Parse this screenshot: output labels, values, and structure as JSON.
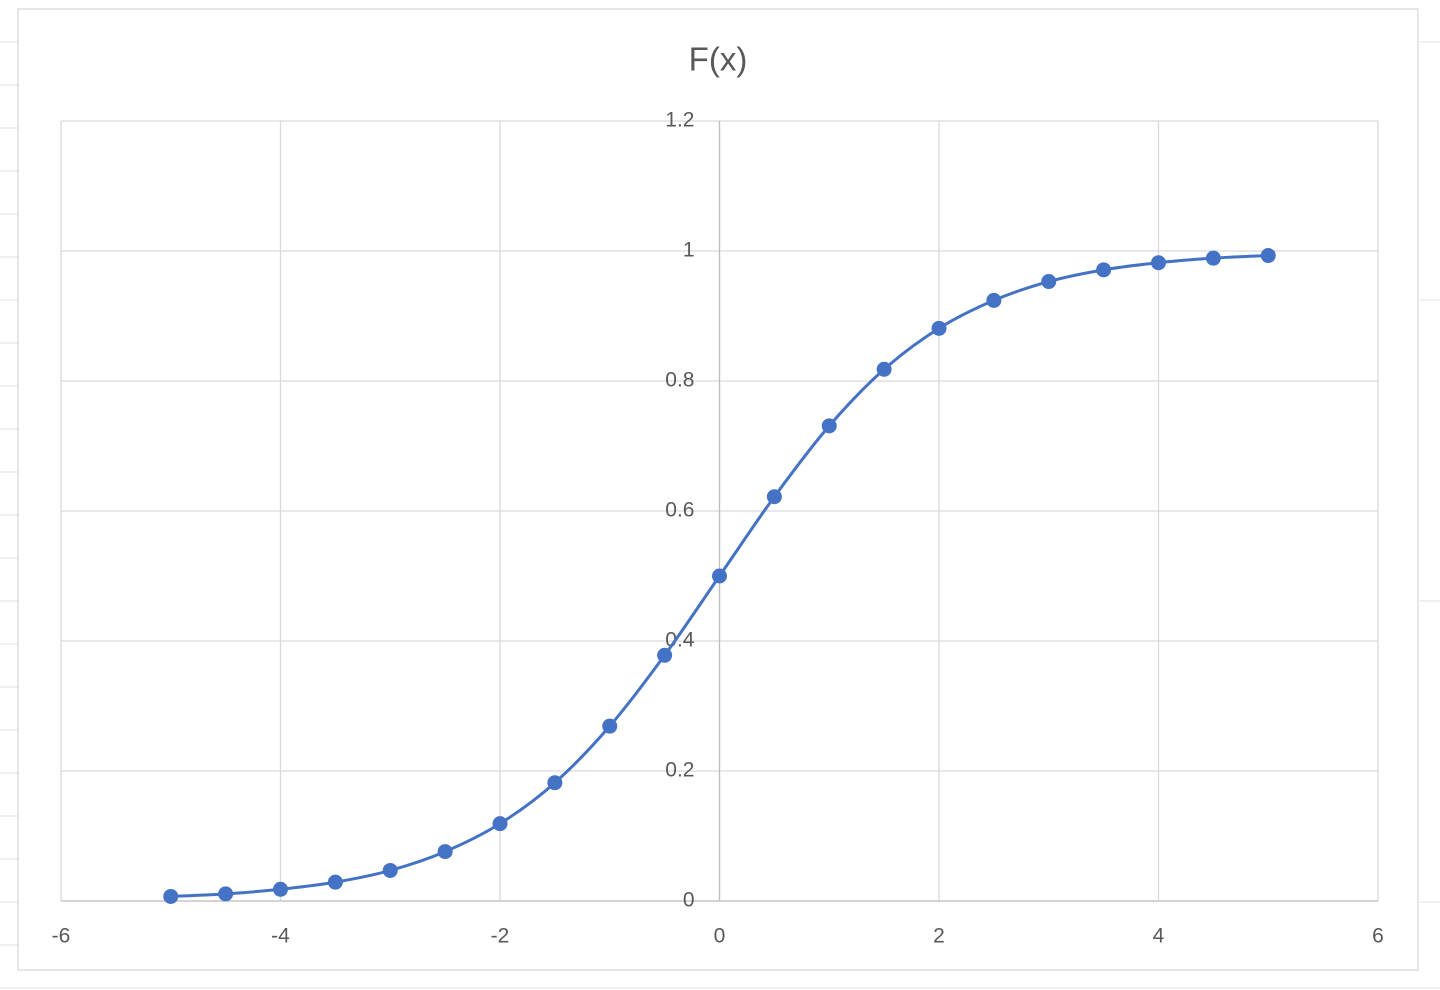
{
  "chart_data": {
    "type": "line",
    "title": "F(x)",
    "x": [
      -5,
      -4.5,
      -4,
      -3.5,
      -3,
      -2.5,
      -2,
      -1.5,
      -1,
      -0.5,
      0,
      0.5,
      1,
      1.5,
      2,
      2.5,
      3,
      3.5,
      4,
      4.5,
      5
    ],
    "values": [
      0.007,
      0.011,
      0.018,
      0.029,
      0.047,
      0.076,
      0.119,
      0.182,
      0.269,
      0.378,
      0.5,
      0.622,
      0.731,
      0.818,
      0.881,
      0.924,
      0.953,
      0.971,
      0.982,
      0.989,
      0.993
    ],
    "color": "#4472c4",
    "smooth": true,
    "markers": true,
    "xlim": [
      -6,
      6
    ],
    "xticks": [
      -6,
      -4,
      -2,
      0,
      2,
      4,
      6
    ],
    "ylim": [
      0,
      1.2
    ],
    "yticks": [
      0,
      0.2,
      0.4,
      0.6,
      0.8,
      1,
      1.2
    ],
    "grid": true
  }
}
